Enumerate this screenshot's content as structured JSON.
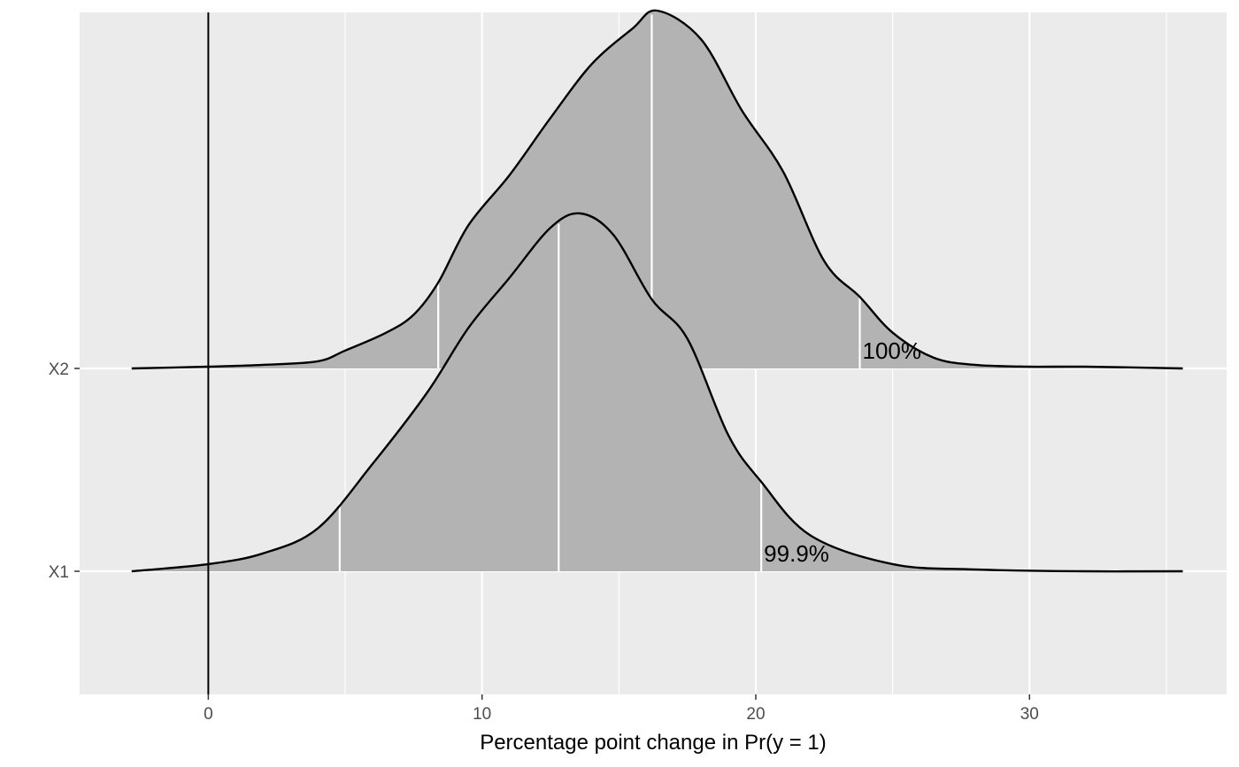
{
  "chart_data": {
    "type": "area",
    "subtype": "ridgeline-density",
    "xlabel": "Percentage point change in Pr(y = 1)",
    "ylabel": "",
    "xlim": [
      -4.7,
      37.2
    ],
    "x_ticks": [
      0,
      10,
      20,
      30
    ],
    "x_tick_labels": [
      "0",
      "10",
      "20",
      "30"
    ],
    "categories": [
      "X1",
      "X2"
    ],
    "grid": true,
    "legend": "none",
    "reference_line_x": 0,
    "colors": {
      "panel": "#ebebeb",
      "grid": "#ffffff",
      "fill": "#b3b3b3",
      "outline": "#000000",
      "tick_text": "#4d4d4d"
    },
    "series": [
      {
        "category": "X1",
        "annotation": "99.9%",
        "interval_lines": [
          4.8,
          12.8,
          20.2
        ],
        "x": [
          -2.8,
          0,
          2,
          4,
          6,
          8,
          9.5,
          11,
          12.5,
          13.6,
          14.8,
          16.2,
          17.5,
          19,
          20.2,
          22,
          25,
          28,
          32,
          35.6
        ],
        "density": [
          0,
          0.02,
          0.05,
          0.12,
          0.3,
          0.5,
          0.68,
          0.82,
          0.96,
          1.0,
          0.94,
          0.76,
          0.65,
          0.38,
          0.25,
          0.1,
          0.02,
          0.005,
          0,
          0
        ]
      },
      {
        "category": "X2",
        "annotation": "100%",
        "interval_lines": [
          8.4,
          16.2,
          23.8
        ],
        "x": [
          -2.8,
          0,
          2,
          4,
          5,
          6.5,
          7.5,
          8.4,
          9.5,
          11,
          12.5,
          14,
          15.5,
          16.4,
          18,
          19.5,
          21,
          22.5,
          23.8,
          25,
          26.5,
          28,
          30,
          32,
          35.6
        ],
        "density": [
          0,
          0.005,
          0.01,
          0.02,
          0.05,
          0.1,
          0.15,
          0.24,
          0.4,
          0.54,
          0.7,
          0.85,
          0.95,
          1.0,
          0.92,
          0.72,
          0.55,
          0.3,
          0.2,
          0.1,
          0.03,
          0.01,
          0.005,
          0.005,
          0
        ]
      }
    ]
  }
}
